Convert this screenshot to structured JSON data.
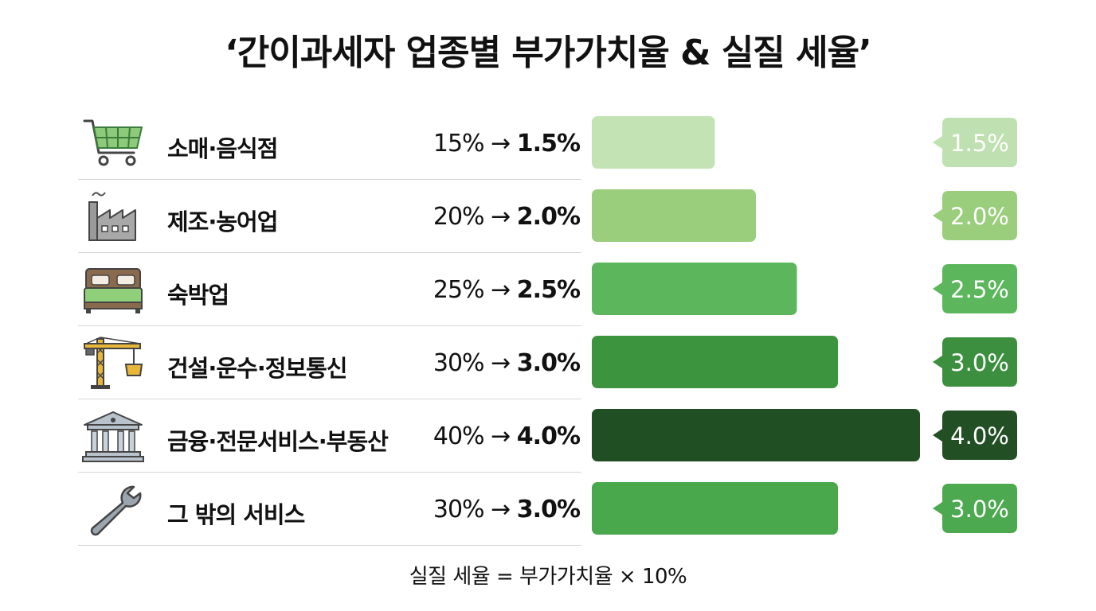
{
  "title": "‘간이과세자 업종별 부가가치율 & 실질 세율’",
  "formula": "실질 세율 = 부가가치율 × 10%",
  "rows": [
    {
      "icon": "shopping-cart-icon",
      "label": "소매·음식점",
      "va_rate": "15%",
      "arrow": "→",
      "eff_rate": "1.5%"
    },
    {
      "icon": "factory-icon",
      "label": "제조·농어업",
      "va_rate": "20%",
      "arrow": "→",
      "eff_rate": "2.0%"
    },
    {
      "icon": "bed-icon",
      "label": "숙박업",
      "va_rate": "25%",
      "arrow": "→",
      "eff_rate": "2.5%"
    },
    {
      "icon": "crane-icon",
      "label": "건설·운수·정보통신",
      "va_rate": "30%",
      "arrow": "→",
      "eff_rate": "3.0%"
    },
    {
      "icon": "bank-icon",
      "label": "금융·전문서비스·부동산",
      "va_rate": "40%",
      "arrow": "→",
      "eff_rate": "4.0%"
    },
    {
      "icon": "wrench-icon",
      "label": "그 밖의 서비스",
      "va_rate": "30%",
      "arrow": "→",
      "eff_rate": "3.0%"
    }
  ],
  "chart_data": {
    "type": "bar",
    "orientation": "horizontal",
    "categories": [
      "소매·음식점",
      "제조·농어업",
      "숙박업",
      "건설·운수·정보통신",
      "금융·전문서비스·부동산",
      "그 밖의 서비스"
    ],
    "values": [
      1.5,
      2.0,
      2.5,
      3.0,
      4.0,
      3.0
    ],
    "value_labels": [
      "1.5%",
      "2.0%",
      "2.5%",
      "3.0%",
      "4.0%",
      "3.0%"
    ],
    "value_added_rates": [
      15,
      20,
      25,
      30,
      40,
      30
    ],
    "unit": "%",
    "bar_colors": [
      "#c4e3b5",
      "#9acd7c",
      "#5cb65c",
      "#3c943f",
      "#214f24",
      "#49a84c"
    ],
    "label_colors": [
      "#bfe0b0",
      "#9acd7c",
      "#5cb65c",
      "#3b8f3e",
      "#234f25",
      "#4ca94f"
    ],
    "grid": false,
    "legend": "none"
  }
}
